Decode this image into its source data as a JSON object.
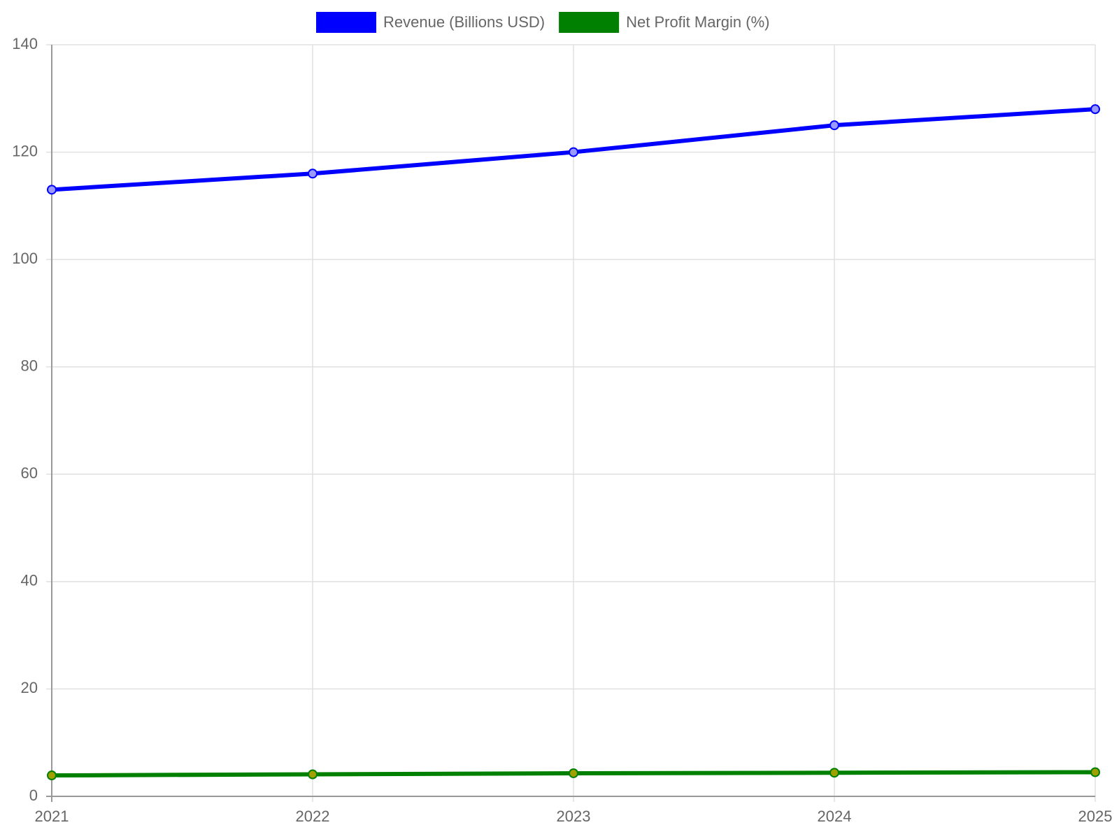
{
  "chart_data": {
    "type": "line",
    "categories": [
      "2021",
      "2022",
      "2023",
      "2024",
      "2025"
    ],
    "series": [
      {
        "name": "Revenue (Billions USD)",
        "color": "#0000ff",
        "values": [
          113,
          116,
          120,
          125,
          128
        ]
      },
      {
        "name": "Net Profit Margin (%)",
        "color": "#008000",
        "values": [
          3.9,
          4.1,
          4.3,
          4.4,
          4.5
        ]
      }
    ],
    "ylim": [
      0,
      140
    ],
    "yticks": [
      0,
      20,
      40,
      60,
      80,
      100,
      120,
      140
    ],
    "grid": true,
    "legend": "top"
  }
}
